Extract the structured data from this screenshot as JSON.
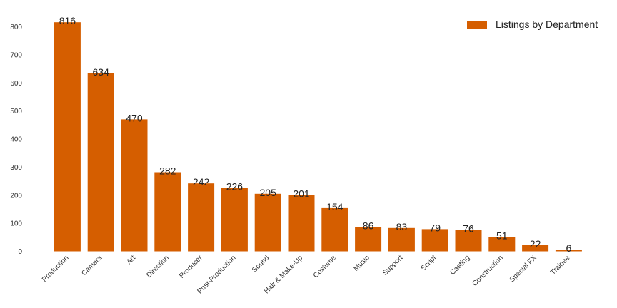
{
  "chart_data": {
    "type": "bar",
    "categories": [
      "Production",
      "Camera",
      "Art",
      "Direction",
      "Producer",
      "Post-Production",
      "Sound",
      "Hair & Make-Up",
      "Costume",
      "Music",
      "Support",
      "Script",
      "Casting",
      "Construction",
      "Special FX",
      "Trainee"
    ],
    "series": [
      {
        "name": "Listings by Department",
        "values": [
          816,
          634,
          470,
          282,
          242,
          226,
          205,
          201,
          154,
          86,
          83,
          79,
          76,
          51,
          22,
          6
        ]
      }
    ],
    "title": "",
    "xlabel": "",
    "ylabel": "",
    "ylim": [
      0,
      850
    ],
    "yticks": [
      0,
      100,
      200,
      300,
      400,
      500,
      600,
      700,
      800
    ],
    "grid": false,
    "legend_position": "top-right",
    "bar_color": "#d55e00"
  }
}
